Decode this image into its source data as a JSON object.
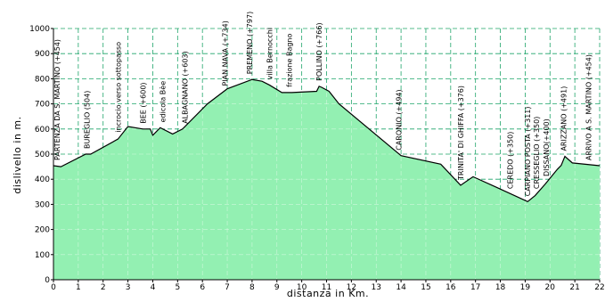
{
  "chart_data": {
    "type": "area",
    "xlabel": "distanza  in  Km.",
    "ylabel": "dislivello  in  m.",
    "xlim": [
      0,
      22
    ],
    "ylim": [
      0,
      1000
    ],
    "xticks": [
      0,
      1,
      2,
      3,
      4,
      5,
      6,
      7,
      8,
      9,
      10,
      11,
      12,
      13,
      14,
      15,
      16,
      17,
      18,
      19,
      20,
      21,
      22
    ],
    "yticks": [
      0,
      100,
      200,
      300,
      400,
      500,
      600,
      700,
      800,
      900,
      1000
    ],
    "grid": true,
    "colors": {
      "area": "#93f0b2",
      "line": "#000000",
      "grid": "#1fa56a",
      "fill_grid": "#ffffff"
    },
    "series": [
      {
        "x": [
          0,
          0.3,
          1.3,
          1.5,
          2.6,
          3.0,
          3.6,
          3.9,
          4.0,
          4.3,
          4.8,
          5.2,
          6.2,
          7.0,
          8.0,
          8.4,
          8.7,
          9.2,
          9.6,
          10.6,
          10.7,
          10.8,
          11.1,
          11.5,
          14.0,
          15.6,
          16.4,
          16.9,
          17.8,
          19.1,
          19.4,
          19.8,
          20.3,
          20.45,
          20.6,
          20.9,
          22.0
        ],
        "y": [
          454,
          450,
          500,
          500,
          560,
          610,
          600,
          600,
          575,
          605,
          580,
          600,
          700,
          760,
          797,
          790,
          775,
          745,
          745,
          750,
          770,
          766,
          750,
          700,
          494,
          460,
          376,
          410,
          370,
          311,
          335,
          380,
          440,
          455,
          491,
          465,
          454
        ]
      }
    ],
    "annotations": [
      {
        "text": "PARTENZA DA S. MARTINO (+454)",
        "x": 0.15,
        "y": 454
      },
      {
        "text": "BUREGLIO (504)",
        "x": 1.35,
        "y": 500
      },
      {
        "text": "incrocio verso sottopasso",
        "x": 2.6,
        "y": 565
      },
      {
        "text": "BEE (+600)",
        "x": 3.6,
        "y": 600
      },
      {
        "text": "edicola Bèe",
        "x": 4.4,
        "y": 605
      },
      {
        "text": "ALBAGNANO (+603)",
        "x": 5.3,
        "y": 600
      },
      {
        "text": "PIAN NAVA (+734)",
        "x": 6.9,
        "y": 750
      },
      {
        "text": "PREMENO (+797)",
        "x": 7.9,
        "y": 797
      },
      {
        "text": "villa Bernocchi",
        "x": 8.7,
        "y": 775
      },
      {
        "text": "frazione Bagno",
        "x": 9.5,
        "y": 745
      },
      {
        "text": "POLLINO (+766)",
        "x": 10.7,
        "y": 770
      },
      {
        "text": "CARONIO (+494)",
        "x": 13.9,
        "y": 494
      },
      {
        "text": "TRINITA' DI GHIFFA (+376)",
        "x": 16.4,
        "y": 376
      },
      {
        "text": "CEREDO (+350)",
        "x": 18.4,
        "y": 340
      },
      {
        "text": "CARPIANO POSTA (+311)",
        "x": 19.1,
        "y": 311
      },
      {
        "text": "CRESSEGLIO (+350)",
        "x": 19.45,
        "y": 340
      },
      {
        "text": "DISSANO(+400)",
        "x": 19.85,
        "y": 390
      },
      {
        "text": "ARIZZANO (+491)",
        "x": 20.55,
        "y": 491
      },
      {
        "text": "ARRIVO A S. MARTINO (+454)",
        "x": 21.55,
        "y": 454
      }
    ]
  }
}
